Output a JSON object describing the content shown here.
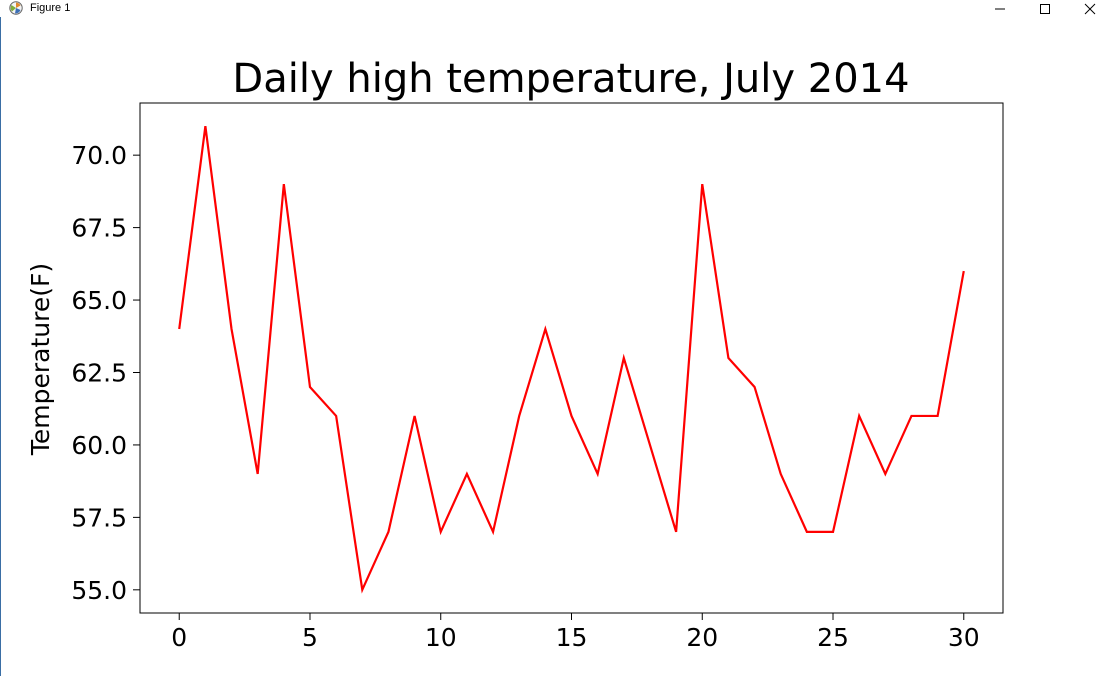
{
  "window": {
    "title": "Figure 1",
    "icon": "matplotlib-icon",
    "controls": [
      "minimize-icon",
      "maximize-icon",
      "close-icon"
    ]
  },
  "chart_data": {
    "type": "line",
    "title": "Daily high temperature, July 2014",
    "xlabel": "",
    "ylabel": "Temperature(F)",
    "x": [
      0,
      1,
      2,
      3,
      4,
      5,
      6,
      7,
      8,
      9,
      10,
      11,
      12,
      13,
      14,
      15,
      16,
      17,
      18,
      19,
      20,
      21,
      22,
      23,
      24,
      25,
      26,
      27,
      28,
      29,
      30
    ],
    "series": [
      {
        "values": [
          64,
          71,
          64,
          59,
          69,
          62,
          61,
          55,
          57,
          61,
          57,
          59,
          57,
          61,
          64,
          61,
          59,
          63,
          60,
          57,
          69,
          63,
          62,
          59,
          57,
          57,
          61,
          59,
          61,
          61,
          66
        ],
        "color": "#ff0000"
      }
    ],
    "xlim": [
      -1.5,
      31.5
    ],
    "ylim": [
      54.2,
      71.8
    ],
    "xticks": [
      0,
      5,
      10,
      15,
      20,
      25,
      30
    ],
    "xtick_labels": [
      "0",
      "5",
      "10",
      "15",
      "20",
      "25",
      "30"
    ],
    "yticks": [
      55.0,
      57.5,
      60.0,
      62.5,
      65.0,
      67.5,
      70.0
    ],
    "ytick_labels": [
      "55.0",
      "57.5",
      "60.0",
      "62.5",
      "65.0",
      "67.5",
      "70.0"
    ],
    "grid": false,
    "legend": "none"
  }
}
